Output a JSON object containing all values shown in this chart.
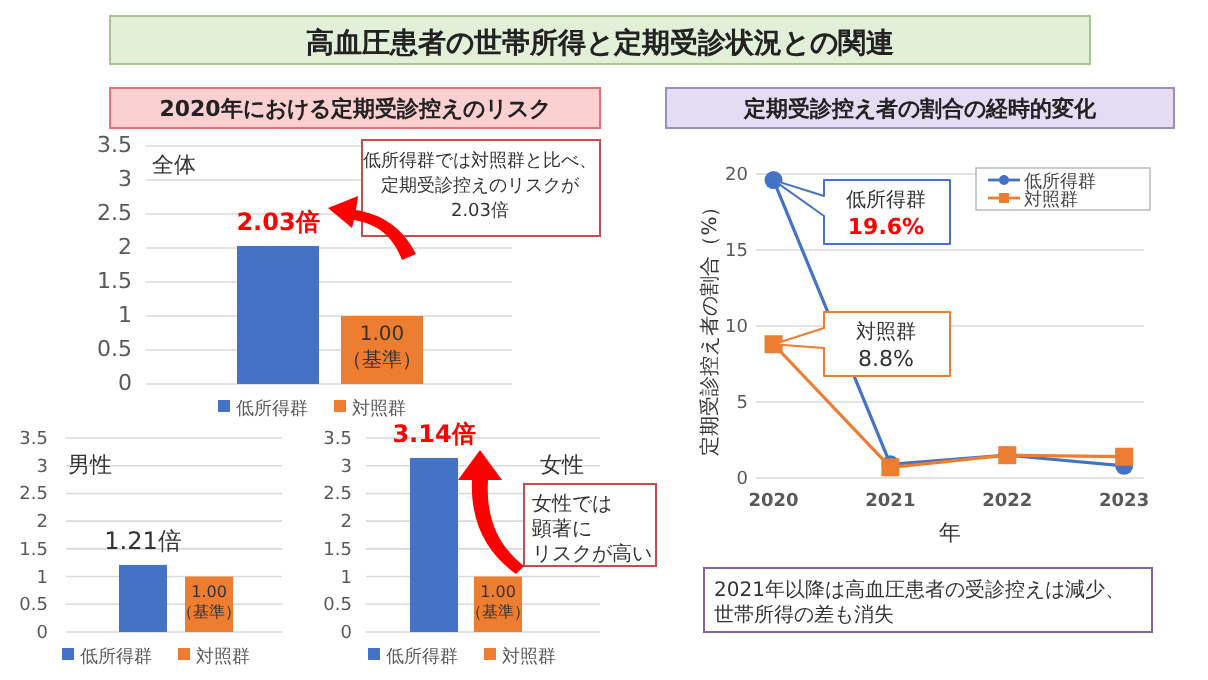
{
  "chart_data": [
    {
      "type": "bar",
      "title": "高血圧患者の世帯所得と定期受診状況との関連",
      "subtitle": "2020年における定期受診控えのリスク",
      "categories": [
        null
      ],
      "series": [
        {
          "name": "低所得群",
          "color": "#4472c4",
          "values": [
            2.03
          ],
          "value_labels": [
            "2.03倍"
          ]
        },
        {
          "name": "対照群",
          "color": "#ed7d31",
          "values": [
            1.0
          ],
          "value_labels": [
            "1.00\n（基準）"
          ]
        }
      ],
      "ylim": [
        0,
        3.5
      ],
      "yticks": [
        0,
        0.5,
        1,
        1.5,
        2,
        2.5,
        3,
        3.5
      ],
      "grid": "y",
      "legend": "bottom",
      "annotations": [
        "全体",
        "低所得群では対照群と比べ、定期受診控えのリスクが2.03倍"
      ]
    },
    {
      "type": "bar",
      "categories": [
        null
      ],
      "series": [
        {
          "name": "低所得群",
          "color": "#4472c4",
          "values": [
            1.21
          ],
          "value_labels": [
            "1.21倍"
          ]
        },
        {
          "name": "対照群",
          "color": "#ed7d31",
          "values": [
            1.0
          ],
          "value_labels": [
            "1.00\n（基準）"
          ]
        }
      ],
      "ylim": [
        0,
        3.5
      ],
      "yticks": [
        0,
        0.5,
        1,
        1.5,
        2,
        2.5,
        3,
        3.5
      ],
      "grid": "y",
      "legend": "bottom",
      "annotations": [
        "男性"
      ]
    },
    {
      "type": "bar",
      "categories": [
        null
      ],
      "series": [
        {
          "name": "低所得群",
          "color": "#4472c4",
          "values": [
            3.14
          ],
          "value_labels": [
            "3.14倍"
          ]
        },
        {
          "name": "対照群",
          "color": "#ed7d31",
          "values": [
            1.0
          ],
          "value_labels": [
            "1.00\n（基準）"
          ]
        }
      ],
      "ylim": [
        0,
        3.5
      ],
      "yticks": [
        0,
        0.5,
        1,
        1.5,
        2,
        2.5,
        3,
        3.5
      ],
      "grid": "y",
      "legend": "bottom",
      "annotations": [
        "女性",
        "女性では顕著にリスクが高い"
      ]
    },
    {
      "type": "line",
      "title": "定期受診控え者の割合の経時的変化",
      "x": [
        2020,
        2021,
        2022,
        2023
      ],
      "xlim": [
        2019.85,
        2023.17
      ],
      "xticks": [
        2020,
        2021,
        2022,
        2023
      ],
      "series": [
        {
          "name": "低所得群",
          "color": "#4472c4",
          "marker": "circle",
          "values": [
            19.6,
            0.9,
            1.5,
            0.8
          ]
        },
        {
          "name": "対照群",
          "color": "#ed7d31",
          "marker": "square",
          "values": [
            8.8,
            0.7,
            1.5,
            1.4
          ]
        }
      ],
      "ylim": [
        0,
        20
      ],
      "yticks": [
        0,
        5,
        10,
        15,
        20
      ],
      "grid": "y",
      "legend": "top right",
      "xlabel": "年",
      "ylabel": "定期受診控え者の割合（%）",
      "annotations": [
        "低所得群",
        "19.6%",
        "対照群",
        "8.8%",
        "2021年以降は高血圧患者の受診控えは減少、世帯所得の差も消失"
      ]
    }
  ]
}
